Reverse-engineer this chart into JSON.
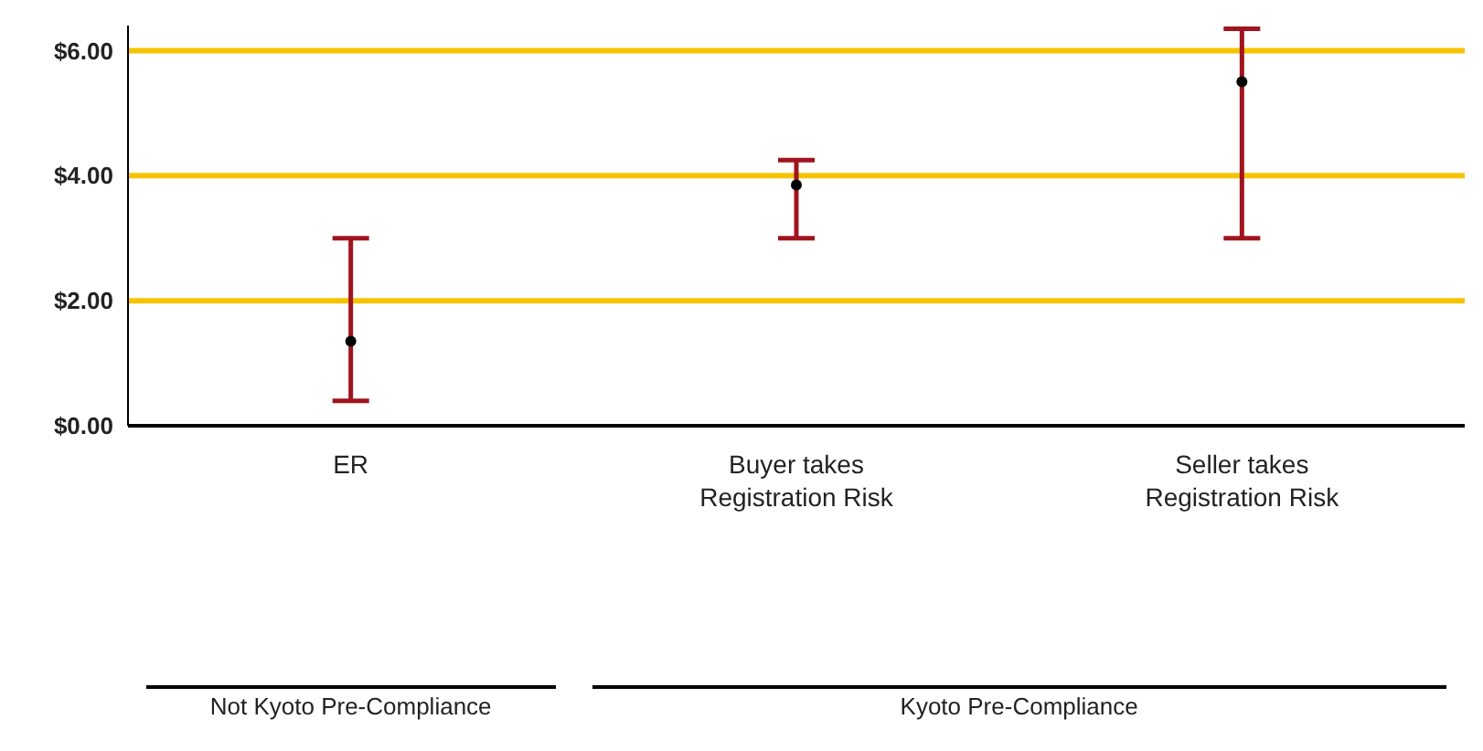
{
  "chart_data": {
    "type": "scatter",
    "categories": [
      "ER",
      "Buyer takes\nRegistration Risk",
      "Seller takes\nRegistration Risk"
    ],
    "series": [
      {
        "color": "#000000",
        "values": [
          1.35,
          3.85,
          5.5
        ],
        "errors": [
          [
            0.4,
            3.0
          ],
          [
            3.0,
            4.25
          ],
          [
            3.0,
            6.35
          ]
        ]
      }
    ],
    "ylim": [
      0,
      6.4
    ],
    "yticks": [
      {
        "value": 0,
        "label": "$0.00"
      },
      {
        "value": 2,
        "label": "$2.00"
      },
      {
        "value": 4,
        "label": "$4.00"
      },
      {
        "value": 6,
        "label": "$6.00"
      }
    ],
    "grid": "y",
    "marker": "circle",
    "annotations": [
      "Not Kyoto Pre-Compliance",
      "Kyoto Pre-Compliance"
    ]
  }
}
